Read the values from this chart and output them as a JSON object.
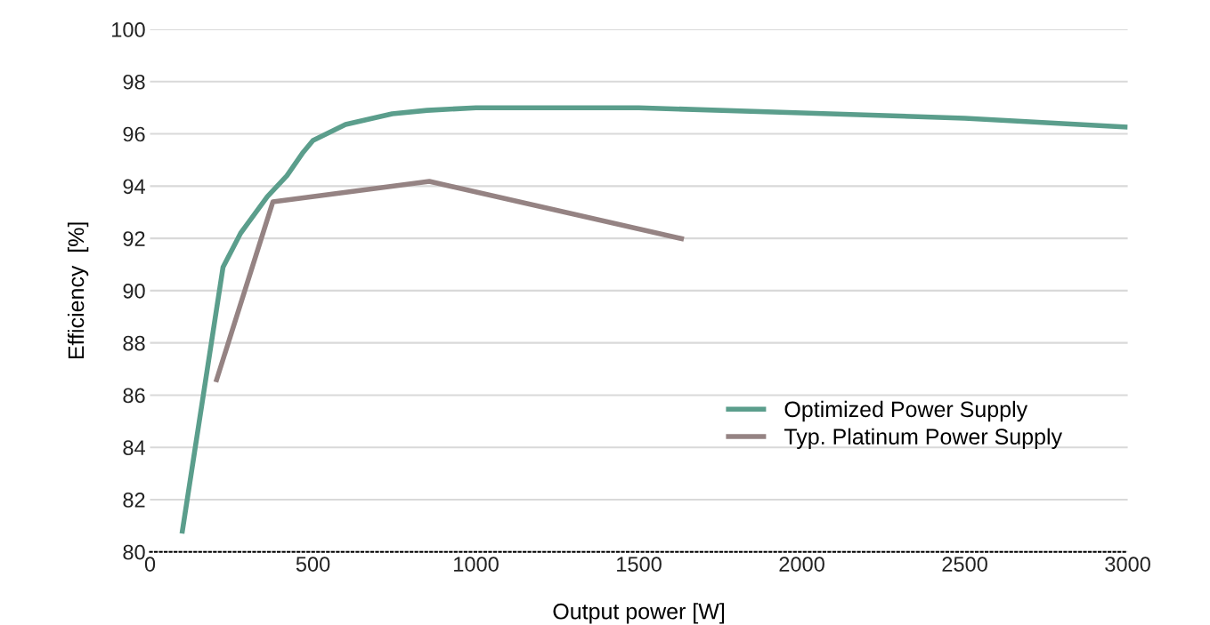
{
  "chart_data": {
    "type": "line",
    "xlabel": "Output power [W]",
    "ylabel": "Efficiency  [%]",
    "xlim": [
      0,
      3000
    ],
    "xticks": [
      0,
      500,
      1000,
      1500,
      2000,
      2500,
      3000
    ],
    "ylim": [
      80,
      100
    ],
    "yticks": [
      80,
      82,
      84,
      86,
      88,
      90,
      92,
      94,
      96,
      98,
      100
    ],
    "grid": "y",
    "legend": "bottom right",
    "marker": "none",
    "line_style": "solid",
    "series": [
      {
        "name": "Optimized Power Supply",
        "color": "#5b9e8c",
        "x": [
          98,
          224,
          278,
          360,
          420,
          470,
          500,
          600,
          743,
          850,
          1000,
          1250,
          1500,
          2000,
          2500,
          3000
        ],
        "values": [
          80.7,
          90.9,
          92.2,
          93.6,
          94.4,
          95.3,
          95.75,
          96.36,
          96.77,
          96.9,
          97.0,
          97.0,
          97.0,
          96.8,
          96.6,
          96.26
        ]
      },
      {
        "name": "Typ. Platinum Power Supply",
        "color": "#958383",
        "x": [
          202,
          377,
          857,
          1638
        ],
        "values": [
          86.5,
          93.4,
          94.18,
          91.97
        ]
      }
    ]
  }
}
